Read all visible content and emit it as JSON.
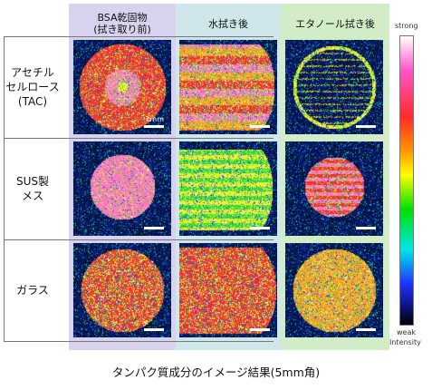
{
  "columns": [
    {
      "label": "BSA乾固物\n(拭き取り前)",
      "bg": "#d9d2ee"
    },
    {
      "label": "水拭き後",
      "bg": "#cfe6ea"
    },
    {
      "label": "エタノール拭き後",
      "bg": "#d3ecc8"
    }
  ],
  "rows": [
    {
      "label": "アセチル\nセルロース\n(TAC)"
    },
    {
      "label": "SUS製\nメス"
    },
    {
      "label": "ガラス"
    }
  ],
  "scale_label": "1mm",
  "colorbar": {
    "top": "strong",
    "bottom_1": "weak",
    "bottom_2": "Intensity"
  },
  "caption": "タンパク質成分のイメージ結果(5mm角)"
}
